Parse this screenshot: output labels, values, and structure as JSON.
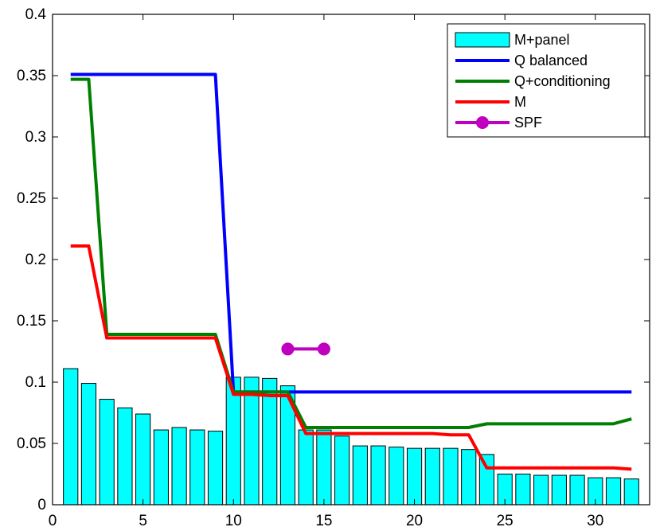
{
  "chart_data": {
    "type": "bar",
    "title": "",
    "xlabel": "",
    "ylabel": "",
    "xlim": [
      0,
      33
    ],
    "ylim": [
      0,
      0.4
    ],
    "x_ticks": [
      0,
      5,
      10,
      15,
      20,
      25,
      30
    ],
    "y_ticks": [
      0,
      0.05,
      0.1,
      0.15,
      0.2,
      0.25,
      0.3,
      0.35,
      0.4
    ],
    "x_tick_labels": [
      "0",
      "5",
      "10",
      "15",
      "20",
      "25",
      "30"
    ],
    "y_tick_labels": [
      "0",
      "0.05",
      "0.1",
      "0.15",
      "0.2",
      "0.25",
      "0.3",
      "0.35",
      "0.4"
    ],
    "grid": false,
    "legend_position": "top-right",
    "bars": {
      "name": "M+panel",
      "color": "#00FFFF",
      "x": [
        1,
        2,
        3,
        4,
        5,
        6,
        7,
        8,
        9,
        10,
        11,
        12,
        13,
        14,
        15,
        16,
        17,
        18,
        19,
        20,
        21,
        22,
        23,
        24,
        25,
        26,
        27,
        28,
        29,
        30,
        31,
        32
      ],
      "values": [
        0.111,
        0.099,
        0.086,
        0.079,
        0.074,
        0.061,
        0.063,
        0.061,
        0.06,
        0.104,
        0.104,
        0.103,
        0.097,
        0.061,
        0.061,
        0.056,
        0.048,
        0.048,
        0.047,
        0.046,
        0.046,
        0.046,
        0.045,
        0.041,
        0.025,
        0.025,
        0.024,
        0.024,
        0.024,
        0.022,
        0.022,
        0.021
      ]
    },
    "series": [
      {
        "name": "Q balanced",
        "color": "#0000FF",
        "x": [
          1,
          2,
          3,
          4,
          5,
          6,
          7,
          8,
          9,
          10,
          11,
          12,
          13,
          14,
          15,
          16,
          17,
          18,
          19,
          20,
          21,
          22,
          23,
          24,
          25,
          26,
          27,
          28,
          29,
          30,
          31,
          32
        ],
        "values": [
          0.351,
          0.351,
          0.351,
          0.351,
          0.351,
          0.351,
          0.351,
          0.351,
          0.351,
          0.092,
          0.092,
          0.092,
          0.092,
          0.092,
          0.092,
          0.092,
          0.092,
          0.092,
          0.092,
          0.092,
          0.092,
          0.092,
          0.092,
          0.092,
          0.092,
          0.092,
          0.092,
          0.092,
          0.092,
          0.092,
          0.092,
          0.092
        ]
      },
      {
        "name": "Q+conditioning",
        "color": "#008000",
        "x": [
          1,
          2,
          3,
          4,
          5,
          6,
          7,
          8,
          9,
          10,
          11,
          12,
          13,
          14,
          15,
          16,
          17,
          18,
          19,
          20,
          21,
          22,
          23,
          24,
          25,
          26,
          27,
          28,
          29,
          30,
          31,
          32
        ],
        "values": [
          0.347,
          0.347,
          0.139,
          0.139,
          0.139,
          0.139,
          0.139,
          0.139,
          0.139,
          0.092,
          0.092,
          0.092,
          0.092,
          0.063,
          0.063,
          0.063,
          0.063,
          0.063,
          0.063,
          0.063,
          0.063,
          0.063,
          0.063,
          0.066,
          0.066,
          0.066,
          0.066,
          0.066,
          0.066,
          0.066,
          0.066,
          0.07
        ]
      },
      {
        "name": "M",
        "color": "#FF0000",
        "x": [
          1,
          2,
          3,
          4,
          5,
          6,
          7,
          8,
          9,
          10,
          11,
          12,
          13,
          14,
          15,
          16,
          17,
          18,
          19,
          20,
          21,
          22,
          23,
          24,
          25,
          26,
          27,
          28,
          29,
          30,
          31,
          32
        ],
        "values": [
          0.211,
          0.211,
          0.136,
          0.136,
          0.136,
          0.136,
          0.136,
          0.136,
          0.136,
          0.09,
          0.09,
          0.089,
          0.089,
          0.058,
          0.058,
          0.058,
          0.058,
          0.058,
          0.058,
          0.058,
          0.058,
          0.057,
          0.057,
          0.03,
          0.03,
          0.03,
          0.03,
          0.03,
          0.03,
          0.03,
          0.03,
          0.029
        ]
      },
      {
        "name": "SPF",
        "color": "#BF00BF",
        "markers": true,
        "x": [
          13,
          15
        ],
        "values": [
          0.127,
          0.127
        ]
      }
    ]
  }
}
